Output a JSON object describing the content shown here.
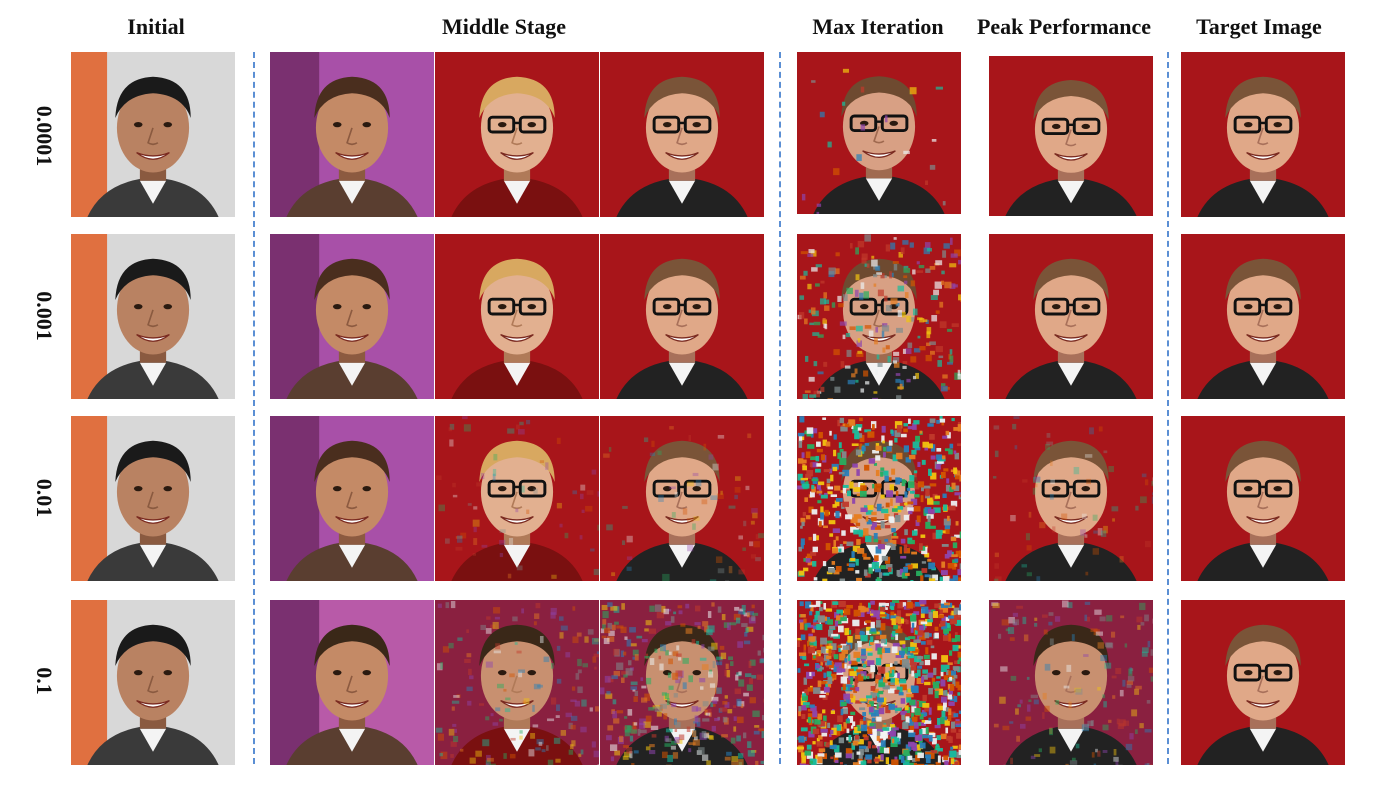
{
  "headers": {
    "initial": "Initial",
    "middle": "Middle Stage",
    "max_iter": "Max Iteration",
    "peak": "Peak Performance",
    "target": "Target Image"
  },
  "rows": [
    {
      "label": "0.0001"
    },
    {
      "label": "0.001"
    },
    {
      "label": "0.01"
    },
    {
      "label": "0.1"
    }
  ]
}
